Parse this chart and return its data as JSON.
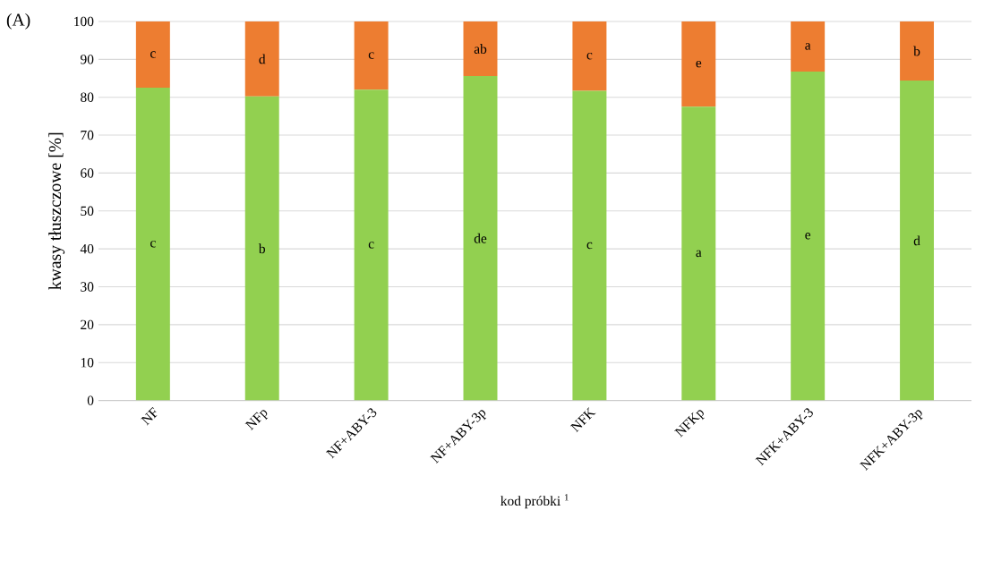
{
  "chart_data": {
    "type": "bar",
    "title": "(A)",
    "xlabel": "kod próbki $^{1}$",
    "ylabel": "kwasy tłuszczowe [%]",
    "categories": [
      "NF",
      "NFp",
      "NF+ABY-3",
      "NF+ABY-3p",
      "NFK",
      "NFKp",
      "NFK+ABY-3",
      "NFK+ABY-3p"
    ],
    "stacked": true,
    "ylim": [
      0,
      100
    ],
    "yticks": [
      0,
      10,
      20,
      30,
      40,
      50,
      60,
      70,
      80,
      90,
      100
    ],
    "grid": "y",
    "series": [
      {
        "color": "#92d050",
        "values": [
          82.5,
          80.2,
          82.0,
          85.6,
          81.7,
          77.5,
          86.8,
          84.4
        ],
        "value_labels": [
          "c",
          "b",
          "c",
          "de",
          "c",
          "a",
          "e",
          "d"
        ]
      },
      {
        "color": "#ed7d31",
        "values": [
          17.5,
          19.8,
          18.0,
          14.4,
          18.3,
          22.5,
          13.2,
          15.6
        ],
        "value_labels": [
          "c",
          "d",
          "c",
          "ab",
          "c",
          "e",
          "a",
          "b"
        ]
      }
    ]
  }
}
